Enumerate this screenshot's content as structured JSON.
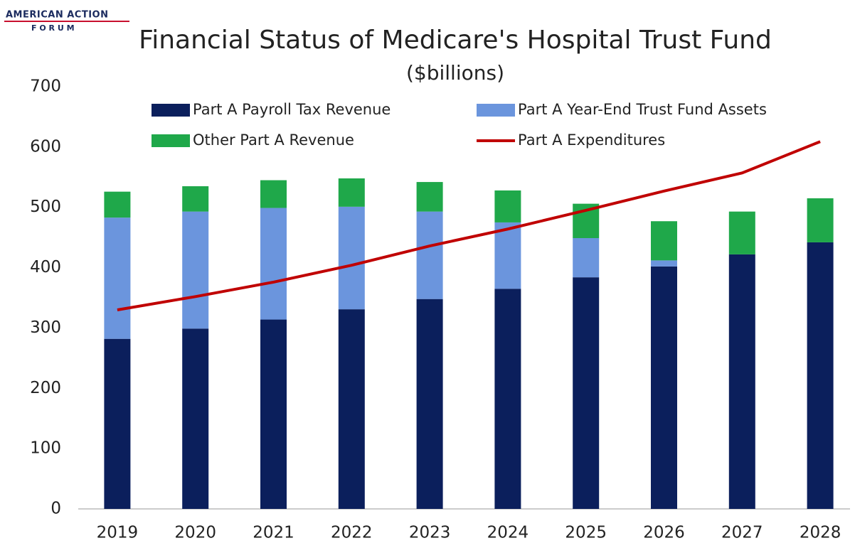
{
  "logo": {
    "line1": "AMERICAN ACTION",
    "line2": "F O R U M"
  },
  "chart_data": {
    "type": "bar",
    "stacked": true,
    "title": "Financial Status of Medicare's Hospital Trust Fund",
    "subtitle": "($billions)",
    "categories": [
      "2019",
      "2020",
      "2021",
      "2022",
      "2023",
      "2024",
      "2025",
      "2026",
      "2027",
      "2028"
    ],
    "series": [
      {
        "name": "Part A Payroll Tax Revenue",
        "color": "#0b1f5c",
        "values": [
          282,
          299,
          314,
          331,
          348,
          365,
          384,
          402,
          422,
          442
        ]
      },
      {
        "name": "Part A Year-End Trust Fund Assets",
        "color": "#6b95dd",
        "values": [
          201,
          194,
          185,
          170,
          145,
          110,
          65,
          10,
          0,
          0
        ]
      },
      {
        "name": "Other Part A Revenue",
        "color": "#1fa84a",
        "values": [
          43,
          42,
          46,
          47,
          49,
          53,
          57,
          65,
          71,
          73
        ]
      },
      {
        "name": "Part A Expenditures",
        "color": "#c00000",
        "type": "line",
        "values": [
          330,
          352,
          376,
          404,
          436,
          464,
          495,
          527,
          557,
          609
        ]
      }
    ],
    "ylim": [
      0,
      700
    ],
    "yticks": [
      0,
      100,
      200,
      300,
      400,
      500,
      600,
      700
    ],
    "grid": false
  }
}
